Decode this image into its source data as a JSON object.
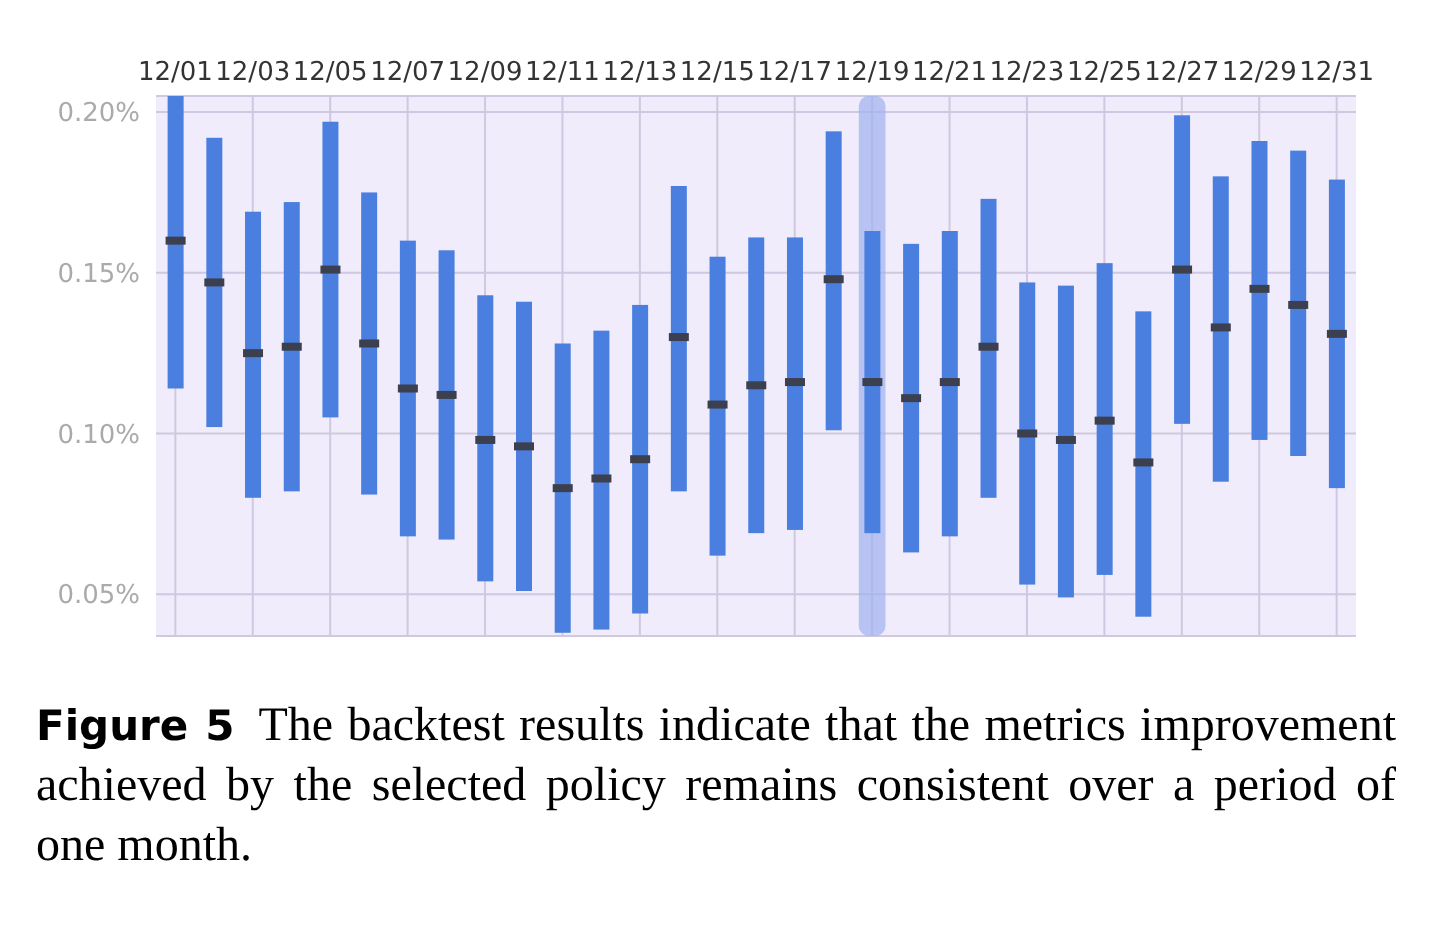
{
  "chart_data": {
    "type": "box",
    "categories": [
      "12/01",
      null,
      "12/03",
      null,
      "12/05",
      null,
      "12/07",
      null,
      "12/09",
      null,
      "12/11",
      null,
      "12/13",
      null,
      "12/15",
      null,
      "12/17",
      null,
      "12/19",
      null,
      "12/21",
      null,
      "12/23",
      null,
      "12/25",
      null,
      "12/27",
      null,
      "12/29",
      null,
      "12/31"
    ],
    "color": "#4a7fe0",
    "boxes": [
      {
        "low": 0.114,
        "q1": 0.114,
        "median": 0.16,
        "q3": 0.205,
        "high": 0.205
      },
      {
        "low": 0.102,
        "q1": 0.102,
        "median": 0.147,
        "q3": 0.192,
        "high": 0.192
      },
      {
        "low": 0.08,
        "q1": 0.08,
        "median": 0.125,
        "q3": 0.169,
        "high": 0.169
      },
      {
        "low": 0.082,
        "q1": 0.082,
        "median": 0.127,
        "q3": 0.172,
        "high": 0.172
      },
      {
        "low": 0.105,
        "q1": 0.105,
        "median": 0.151,
        "q3": 0.197,
        "high": 0.197
      },
      {
        "low": 0.081,
        "q1": 0.081,
        "median": 0.128,
        "q3": 0.175,
        "high": 0.175
      },
      {
        "low": 0.068,
        "q1": 0.068,
        "median": 0.114,
        "q3": 0.16,
        "high": 0.16
      },
      {
        "low": 0.067,
        "q1": 0.067,
        "median": 0.112,
        "q3": 0.157,
        "high": 0.157
      },
      {
        "low": 0.054,
        "q1": 0.054,
        "median": 0.098,
        "q3": 0.143,
        "high": 0.143
      },
      {
        "low": 0.051,
        "q1": 0.051,
        "median": 0.096,
        "q3": 0.141,
        "high": 0.141
      },
      {
        "low": 0.038,
        "q1": 0.038,
        "median": 0.083,
        "q3": 0.128,
        "high": 0.128
      },
      {
        "low": 0.039,
        "q1": 0.039,
        "median": 0.086,
        "q3": 0.132,
        "high": 0.132
      },
      {
        "low": 0.044,
        "q1": 0.044,
        "median": 0.092,
        "q3": 0.14,
        "high": 0.14
      },
      {
        "low": 0.082,
        "q1": 0.082,
        "median": 0.13,
        "q3": 0.177,
        "high": 0.177
      },
      {
        "low": 0.062,
        "q1": 0.062,
        "median": 0.109,
        "q3": 0.155,
        "high": 0.155
      },
      {
        "low": 0.069,
        "q1": 0.069,
        "median": 0.115,
        "q3": 0.161,
        "high": 0.161
      },
      {
        "low": 0.07,
        "q1": 0.07,
        "median": 0.116,
        "q3": 0.161,
        "high": 0.161
      },
      {
        "low": 0.101,
        "q1": 0.101,
        "median": 0.148,
        "q3": 0.194,
        "high": 0.194
      },
      {
        "low": 0.069,
        "q1": 0.069,
        "median": 0.116,
        "q3": 0.163,
        "high": 0.163
      },
      {
        "low": 0.063,
        "q1": 0.063,
        "median": 0.111,
        "q3": 0.159,
        "high": 0.159
      },
      {
        "low": 0.068,
        "q1": 0.068,
        "median": 0.116,
        "q3": 0.163,
        "high": 0.163
      },
      {
        "low": 0.08,
        "q1": 0.08,
        "median": 0.127,
        "q3": 0.173,
        "high": 0.173
      },
      {
        "low": 0.053,
        "q1": 0.053,
        "median": 0.1,
        "q3": 0.147,
        "high": 0.147
      },
      {
        "low": 0.049,
        "q1": 0.049,
        "median": 0.098,
        "q3": 0.146,
        "high": 0.146
      },
      {
        "low": 0.056,
        "q1": 0.056,
        "median": 0.104,
        "q3": 0.153,
        "high": 0.153
      },
      {
        "low": 0.043,
        "q1": 0.043,
        "median": 0.091,
        "q3": 0.138,
        "high": 0.138
      },
      {
        "low": 0.103,
        "q1": 0.103,
        "median": 0.151,
        "q3": 0.199,
        "high": 0.199
      },
      {
        "low": 0.085,
        "q1": 0.085,
        "median": 0.133,
        "q3": 0.18,
        "high": 0.18
      },
      {
        "low": 0.098,
        "q1": 0.098,
        "median": 0.145,
        "q3": 0.191,
        "high": 0.191
      },
      {
        "low": 0.093,
        "q1": 0.093,
        "median": 0.14,
        "q3": 0.188,
        "high": 0.188
      },
      {
        "low": 0.083,
        "q1": 0.083,
        "median": 0.131,
        "q3": 0.179,
        "high": 0.179
      }
    ],
    "ylim": [
      0.037,
      0.205
    ],
    "yticks": [
      {
        "value": 0.05,
        "label": "0.05%"
      },
      {
        "value": 0.1,
        "label": "0.10%"
      },
      {
        "value": 0.15,
        "label": "0.15%"
      },
      {
        "value": 0.2,
        "label": "0.20%"
      }
    ],
    "grid": true,
    "bands": [
      {
        "axis": "x",
        "from": "12/19",
        "to": "12/19",
        "color": "#9fb2ef"
      }
    ],
    "annotations": [
      "Figure 5",
      "The backtest results indicate that the metrics improvement achieved by the selected policy remains consistent over a period of one month."
    ]
  }
}
